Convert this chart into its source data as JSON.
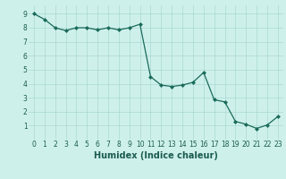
{
  "xlabel": "Humidex (Indice chaleur)",
  "ylabel": "",
  "x_values": [
    0,
    1,
    2,
    3,
    4,
    5,
    6,
    7,
    8,
    9,
    10,
    11,
    12,
    13,
    14,
    15,
    16,
    17,
    18,
    19,
    20,
    21,
    22,
    23
  ],
  "y_values": [
    9.0,
    8.6,
    8.0,
    7.8,
    8.0,
    8.0,
    7.85,
    8.0,
    7.85,
    8.0,
    8.25,
    4.5,
    3.9,
    3.8,
    3.9,
    4.1,
    4.8,
    2.85,
    2.7,
    1.3,
    1.1,
    0.8,
    1.05,
    1.65
  ],
  "line_color": "#1a6b5a",
  "marker": "D",
  "marker_size": 2,
  "bg_color": "#cef0eb",
  "grid_color": "#aad8d0",
  "xlim": [
    -0.5,
    23.5
  ],
  "ylim": [
    0,
    9.6
  ],
  "yticks": [
    1,
    2,
    3,
    4,
    5,
    6,
    7,
    8,
    9
  ],
  "xticks": [
    0,
    1,
    2,
    3,
    4,
    5,
    6,
    7,
    8,
    9,
    10,
    11,
    12,
    13,
    14,
    15,
    16,
    17,
    18,
    19,
    20,
    21,
    22,
    23
  ],
  "tick_fontsize": 5.5,
  "xlabel_fontsize": 7,
  "label_color": "#1a5c4e"
}
